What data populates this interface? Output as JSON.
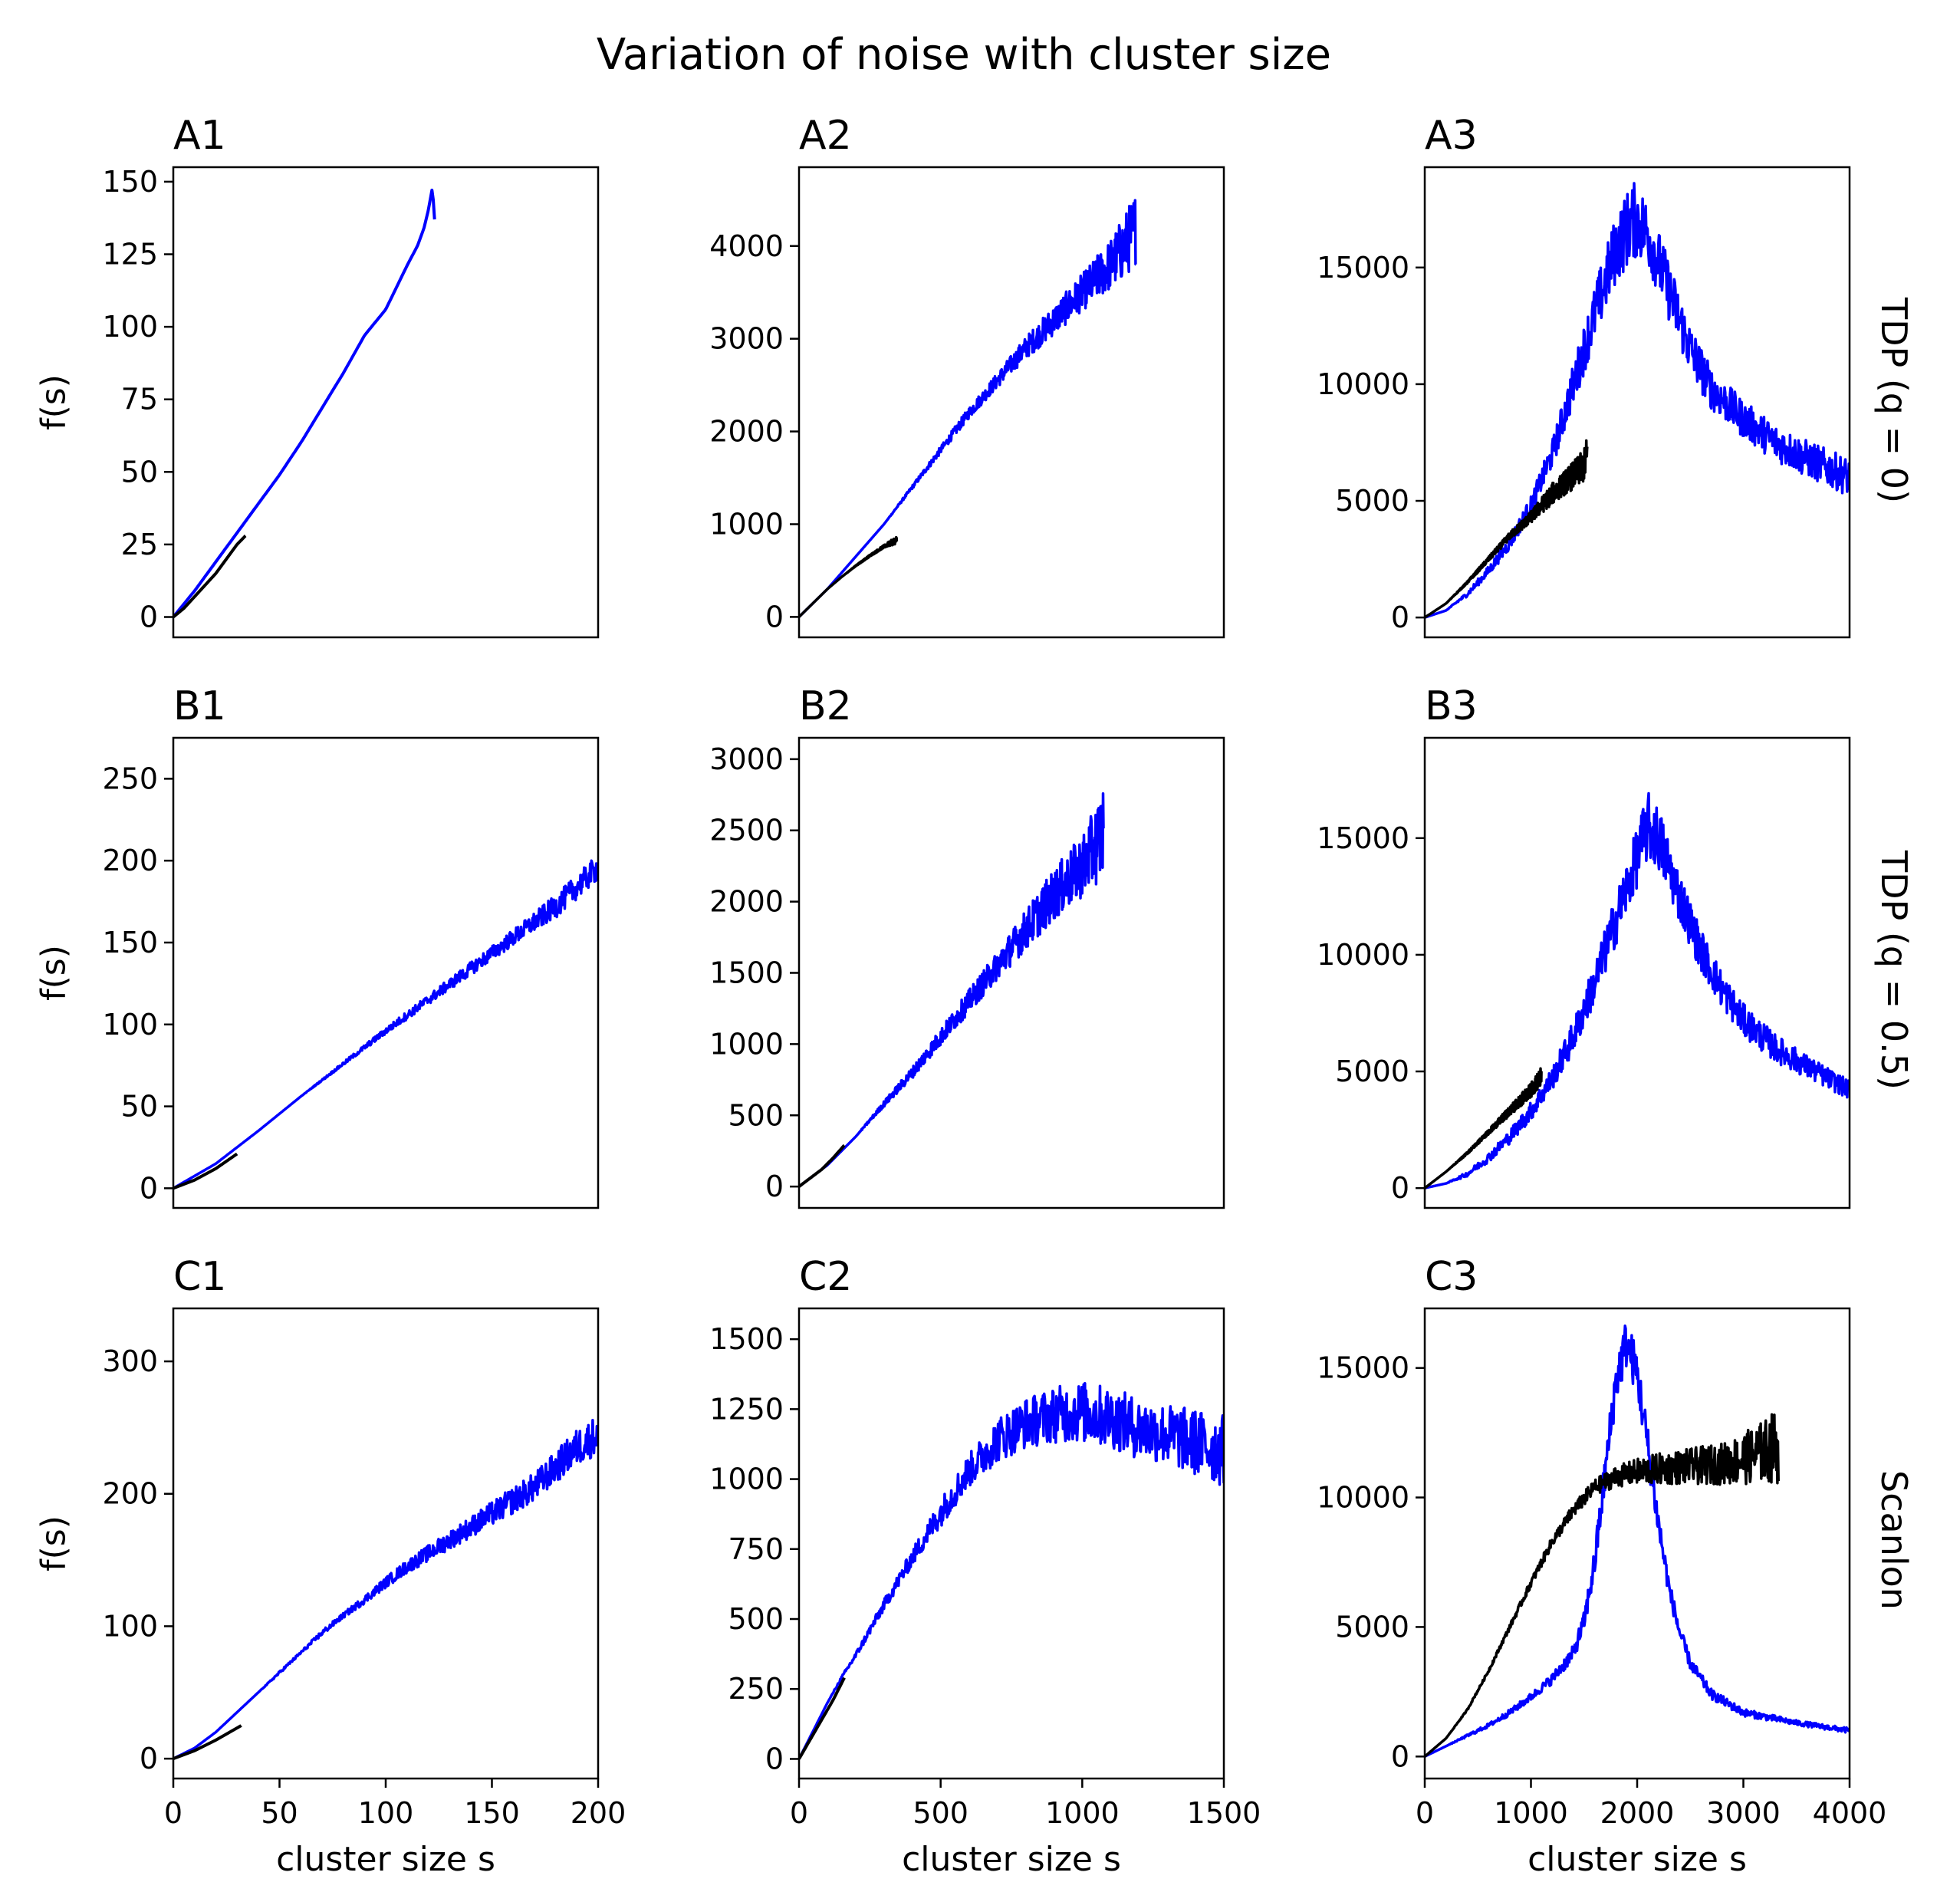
{
  "title": "Variation of noise with cluster size",
  "row_labels": [
    "TDP (q = 0)",
    "TDP (q = 0.5)",
    "Scanlon"
  ],
  "colors": {
    "series_blue": "#0000ff",
    "series_black": "#000000"
  },
  "chart_data": [
    {
      "id": "A1",
      "type": "line",
      "title": "A1",
      "row_label": "TDP (q = 0)",
      "xlabel": "",
      "ylabel": "f(s)",
      "xlim": [
        0,
        200
      ],
      "ylim": [
        -7,
        155
      ],
      "xticks": [],
      "yticks": [
        0,
        25,
        50,
        75,
        100,
        125,
        150
      ],
      "series": [
        {
          "color": "#0000ff",
          "x": [
            0,
            10,
            20,
            30,
            40,
            50,
            60,
            70,
            80,
            90,
            100,
            110,
            115,
            118,
            120,
            122,
            123
          ],
          "y": [
            0,
            9,
            19,
            29,
            39,
            49,
            60,
            72,
            84,
            97,
            106,
            121,
            128,
            134,
            140,
            148,
            137
          ]
        },
        {
          "color": "#000000",
          "x": [
            0,
            5,
            10,
            15,
            20,
            25,
            30,
            34
          ],
          "y": [
            0,
            3,
            7,
            11,
            15,
            20,
            25,
            28
          ]
        }
      ]
    },
    {
      "id": "A2",
      "type": "line",
      "title": "A2",
      "row_label": "TDP (q = 0)",
      "xlabel": "",
      "ylabel": "",
      "xlim": [
        0,
        1500
      ],
      "ylim": [
        -220,
        4850
      ],
      "xticks": [],
      "yticks": [
        0,
        1000,
        2000,
        3000,
        4000
      ],
      "series": [
        {
          "color": "#0000ff",
          "x": [
            0,
            100,
            200,
            300,
            400,
            500,
            600,
            700,
            800,
            900,
            1000,
            1100,
            1150,
            1190
          ],
          "y": [
            0,
            300,
            650,
            1000,
            1400,
            1800,
            2200,
            2550,
            2900,
            3200,
            3500,
            3800,
            4000,
            4200
          ],
          "noise": [
            0,
            0,
            0,
            0,
            20,
            40,
            60,
            80,
            120,
            160,
            200,
            280,
            350,
            400
          ]
        },
        {
          "color": "#000000",
          "x": [
            0,
            50,
            100,
            150,
            200,
            250,
            300,
            345
          ],
          "y": [
            0,
            150,
            300,
            430,
            550,
            660,
            760,
            830
          ],
          "noise": [
            0,
            0,
            0,
            0,
            5,
            10,
            15,
            40
          ]
        }
      ]
    },
    {
      "id": "A3",
      "type": "line",
      "title": "A3",
      "row_label": "TDP (q = 0)",
      "xlabel": "",
      "ylabel": "",
      "xlim": [
        0,
        4000
      ],
      "ylim": [
        -850,
        19300
      ],
      "xticks": [],
      "yticks": [
        0,
        5000,
        10000,
        15000
      ],
      "series": [
        {
          "color": "#0000ff",
          "x": [
            0,
            200,
            400,
            600,
            800,
            1000,
            1200,
            1400,
            1600,
            1800,
            1950,
            2000,
            2100,
            2300,
            2500,
            2700,
            3000,
            3300,
            3600,
            4000
          ],
          "y": [
            0,
            300,
            1000,
            2000,
            3200,
            4800,
            7000,
            10000,
            13000,
            15800,
            17000,
            17000,
            16500,
            14000,
            11500,
            9800,
            8500,
            7500,
            6800,
            6000
          ],
          "noise": [
            0,
            0,
            100,
            200,
            300,
            400,
            600,
            900,
            1200,
            1500,
            1700,
            1600,
            1500,
            1300,
            1100,
            900,
            800,
            800,
            800,
            800
          ]
        },
        {
          "color": "#000000",
          "x": [
            0,
            200,
            400,
            600,
            800,
            1000,
            1100,
            1200,
            1300,
            1400,
            1500,
            1530
          ],
          "y": [
            0,
            600,
            1500,
            2500,
            3500,
            4300,
            4800,
            5300,
            5700,
            6100,
            6500,
            7000
          ],
          "noise": [
            0,
            0,
            50,
            100,
            150,
            250,
            350,
            450,
            500,
            600,
            700,
            900
          ]
        }
      ]
    },
    {
      "id": "B1",
      "type": "line",
      "title": "B1",
      "row_label": "TDP (q = 0.5)",
      "xlabel": "",
      "ylabel": "f(s)",
      "xlim": [
        0,
        200
      ],
      "ylim": [
        -12,
        275
      ],
      "xticks": [],
      "yticks": [
        0,
        50,
        100,
        150,
        200,
        250
      ],
      "series": [
        {
          "color": "#0000ff",
          "x": [
            0,
            20,
            40,
            60,
            80,
            100,
            120,
            140,
            160,
            180,
            200
          ],
          "y": [
            0,
            15,
            35,
            56,
            76,
            96,
            115,
            134,
            153,
            172,
            196
          ],
          "noise": [
            0,
            0,
            0,
            0,
            1,
            2,
            3,
            4,
            5,
            7,
            8
          ]
        },
        {
          "color": "#000000",
          "x": [
            0,
            10,
            20,
            30
          ],
          "y": [
            0,
            5,
            12,
            21
          ]
        }
      ]
    },
    {
      "id": "B2",
      "type": "line",
      "title": "B2",
      "row_label": "TDP (q = 0.5)",
      "xlabel": "",
      "ylabel": "",
      "xlim": [
        0,
        1500
      ],
      "ylim": [
        -150,
        3150
      ],
      "xticks": [],
      "yticks": [
        0,
        500,
        1000,
        1500,
        2000,
        2500,
        3000
      ],
      "series": [
        {
          "color": "#0000ff",
          "x": [
            0,
            100,
            200,
            300,
            400,
            500,
            600,
            700,
            800,
            900,
            1000,
            1050,
            1075
          ],
          "y": [
            0,
            150,
            350,
            580,
            800,
            1050,
            1300,
            1550,
            1800,
            2050,
            2250,
            2400,
            2500
          ],
          "noise": [
            0,
            0,
            0,
            20,
            40,
            60,
            80,
            100,
            140,
            180,
            220,
            280,
            350
          ]
        },
        {
          "color": "#000000",
          "x": [
            0,
            40,
            80,
            120,
            160
          ],
          "y": [
            0,
            60,
            120,
            200,
            290
          ]
        }
      ]
    },
    {
      "id": "B3",
      "type": "line",
      "title": "B3",
      "row_label": "TDP (q = 0.5)",
      "xlabel": "",
      "ylabel": "",
      "xlim": [
        0,
        4000
      ],
      "ylim": [
        -850,
        19300
      ],
      "xticks": [],
      "yticks": [
        0,
        5000,
        10000,
        15000
      ],
      "series": [
        {
          "color": "#0000ff",
          "x": [
            0,
            200,
            400,
            600,
            800,
            1000,
            1200,
            1400,
            1600,
            1800,
            2000,
            2100,
            2200,
            2400,
            2600,
            2800,
            3000,
            3300,
            3600,
            4000
          ],
          "y": [
            0,
            200,
            600,
            1300,
            2200,
            3300,
            4700,
            6500,
            8800,
            11500,
            14200,
            15500,
            15000,
            12500,
            10200,
            8500,
            7200,
            6000,
            5200,
            4200
          ],
          "noise": [
            0,
            0,
            100,
            200,
            300,
            400,
            500,
            700,
            900,
            1100,
            1300,
            1500,
            1400,
            1100,
            900,
            800,
            700,
            600,
            500,
            400
          ]
        },
        {
          "color": "#000000",
          "x": [
            0,
            200,
            400,
            600,
            800,
            1000,
            1100
          ],
          "y": [
            0,
            700,
            1500,
            2400,
            3300,
            4200,
            4800
          ],
          "noise": [
            0,
            0,
            50,
            100,
            200,
            300,
            400
          ]
        }
      ]
    },
    {
      "id": "C1",
      "type": "line",
      "title": "C1",
      "row_label": "Scanlon",
      "xlabel": "cluster size s",
      "ylabel": "f(s)",
      "xlim": [
        0,
        200
      ],
      "ylim": [
        -15,
        340
      ],
      "xticks": [
        0,
        50,
        100,
        150,
        200
      ],
      "yticks": [
        0,
        100,
        200,
        300
      ],
      "series": [
        {
          "color": "#0000ff",
          "x": [
            0,
            10,
            20,
            30,
            40,
            50,
            60,
            70,
            80,
            90,
            100,
            110,
            120,
            130,
            140,
            150,
            160,
            170,
            180,
            190,
            200
          ],
          "y": [
            0,
            8,
            20,
            35,
            50,
            65,
            80,
            95,
            108,
            120,
            133,
            145,
            155,
            165,
            175,
            185,
            195,
            205,
            220,
            235,
            245
          ],
          "noise": [
            0,
            0,
            0,
            0,
            0,
            1,
            1,
            2,
            2,
            3,
            4,
            5,
            6,
            7,
            8,
            9,
            10,
            11,
            12,
            14,
            15
          ]
        },
        {
          "color": "#000000",
          "x": [
            0,
            10,
            20,
            32
          ],
          "y": [
            0,
            6,
            14,
            25
          ]
        }
      ]
    },
    {
      "id": "C2",
      "type": "line",
      "title": "C2",
      "row_label": "Scanlon",
      "xlabel": "cluster size s",
      "ylabel": "",
      "xlim": [
        0,
        1500
      ],
      "ylim": [
        -70,
        1610
      ],
      "xticks": [
        0,
        500,
        1000,
        1500
      ],
      "yticks": [
        0,
        250,
        500,
        750,
        1000,
        1250,
        1500
      ],
      "series": [
        {
          "color": "#0000ff",
          "x": [
            0,
            50,
            100,
            150,
            200,
            300,
            400,
            500,
            600,
            700,
            800,
            900,
            1000,
            1100,
            1200,
            1300,
            1400,
            1500
          ],
          "y": [
            0,
            100,
            200,
            290,
            370,
            550,
            720,
            880,
            1030,
            1140,
            1200,
            1230,
            1240,
            1220,
            1180,
            1160,
            1130,
            1100
          ],
          "noise": [
            0,
            0,
            0,
            5,
            10,
            20,
            30,
            50,
            60,
            80,
            90,
            100,
            110,
            110,
            110,
            110,
            120,
            130
          ]
        },
        {
          "color": "#000000",
          "x": [
            0,
            40,
            80,
            120,
            160
          ],
          "y": [
            0,
            70,
            140,
            210,
            290
          ]
        }
      ]
    },
    {
      "id": "C3",
      "type": "line",
      "title": "C3",
      "row_label": "Scanlon",
      "xlabel": "cluster size s",
      "ylabel": "",
      "xlim": [
        0,
        4000
      ],
      "ylim": [
        -850,
        17300
      ],
      "xticks": [
        0,
        1000,
        2000,
        3000,
        4000
      ],
      "yticks": [
        0,
        5000,
        10000,
        15000
      ],
      "series": [
        {
          "color": "#0000ff",
          "x": [
            0,
            200,
            400,
            600,
            800,
            1000,
            1200,
            1400,
            1500,
            1600,
            1700,
            1800,
            1900,
            2000,
            2100,
            2200,
            2300,
            2400,
            2500,
            2700,
            3000,
            3500,
            4000
          ],
          "y": [
            0,
            400,
            800,
            1200,
            1700,
            2300,
            3000,
            4000,
            5200,
            7500,
            11000,
            14500,
            16000,
            14800,
            12000,
            9000,
            6500,
            4800,
            3600,
            2400,
            1700,
            1300,
            1000
          ],
          "noise": [
            0,
            0,
            50,
            80,
            120,
            150,
            200,
            300,
            400,
            600,
            800,
            900,
            1000,
            900,
            800,
            600,
            400,
            300,
            250,
            200,
            150,
            100,
            100
          ]
        },
        {
          "color": "#000000",
          "x": [
            0,
            200,
            400,
            600,
            800,
            1000,
            1200,
            1400,
            1600,
            1800,
            2000,
            2200,
            2500,
            2800,
            3000,
            3200,
            3330
          ],
          "y": [
            0,
            700,
            1800,
            3300,
            5000,
            6700,
            8300,
            9500,
            10400,
            10800,
            11000,
            11100,
            11200,
            11300,
            11500,
            11800,
            12000
          ],
          "noise": [
            0,
            0,
            30,
            60,
            100,
            150,
            200,
            250,
            300,
            400,
            500,
            600,
            700,
            800,
            1000,
            1200,
            1500
          ]
        }
      ]
    }
  ]
}
